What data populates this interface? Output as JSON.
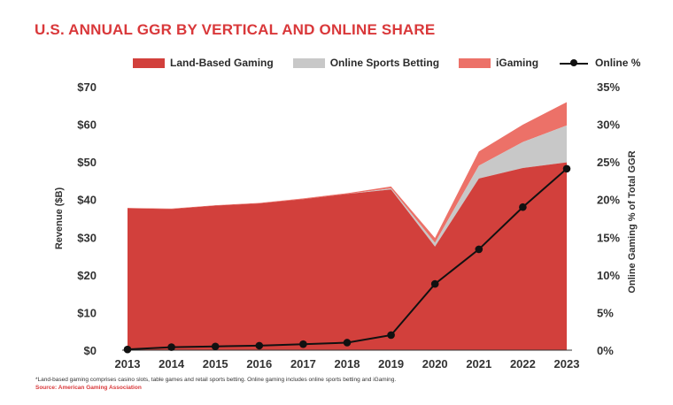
{
  "chart_data": {
    "type": "area",
    "title": "U.S. ANNUAL GGR BY VERTICAL AND ONLINE SHARE",
    "categories": [
      "2013",
      "2014",
      "2015",
      "2016",
      "2017",
      "2018",
      "2019",
      "2020",
      "2021",
      "2022",
      "2023"
    ],
    "ylabel": "Revenue ($B)",
    "y2label": "Online Gaming % of Total GGR",
    "ylim": [
      0,
      70
    ],
    "y2lim": [
      0,
      35
    ],
    "yticks": [
      "$0",
      "$10",
      "$20",
      "$30",
      "$40",
      "$50",
      "$60",
      "$70"
    ],
    "y2ticks": [
      "0%",
      "5%",
      "10%",
      "15%",
      "20%",
      "25%",
      "30%",
      "35%"
    ],
    "legend": [
      {
        "key": "land",
        "label": "Land-Based Gaming",
        "color": "#d2403c"
      },
      {
        "key": "osb",
        "label": "Online Sports Betting",
        "color": "#c8c8c8"
      },
      {
        "key": "igaming",
        "label": "iGaming",
        "color": "#ec7168"
      },
      {
        "key": "online",
        "label": "Online %",
        "color": "#111111"
      }
    ],
    "series": [
      {
        "name": "Land-Based Gaming",
        "values": [
          37.7,
          37.5,
          38.4,
          39.0,
          40.1,
          41.5,
          42.7,
          27.5,
          45.6,
          48.4,
          49.9
        ]
      },
      {
        "name": "Online Sports Betting",
        "values": [
          0.0,
          0.0,
          0.0,
          0.0,
          0.0,
          0.0,
          0.3,
          1.0,
          3.4,
          6.9,
          9.8
        ]
      },
      {
        "name": "iGaming",
        "values": [
          0.1,
          0.1,
          0.1,
          0.1,
          0.2,
          0.2,
          0.5,
          1.3,
          3.8,
          4.6,
          6.2
        ]
      },
      {
        "name": "Online %",
        "axis": "right",
        "values": [
          0.1,
          0.4,
          0.5,
          0.6,
          0.8,
          1.0,
          2.0,
          8.8,
          13.4,
          19.0,
          24.1
        ]
      }
    ],
    "footnote": "*Land-based gaming comprises casino slots, table games and retail sports betting. Online gaming includes online sports betting and iGaming.",
    "source": "Source: American Gaming Association"
  }
}
